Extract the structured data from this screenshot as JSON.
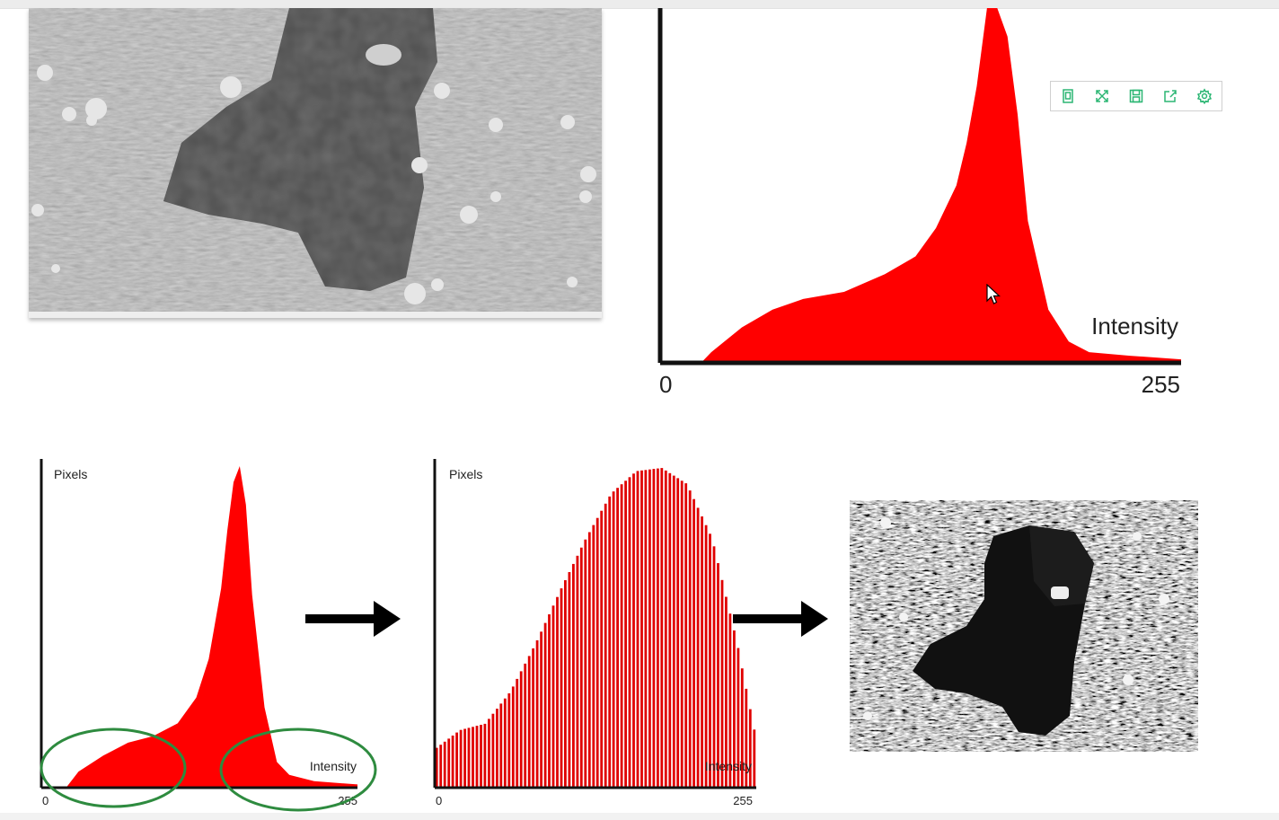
{
  "toolbox": {
    "icons": [
      "data-zoom-icon",
      "restore-icon",
      "save-image-icon",
      "share-icon",
      "settings-icon"
    ],
    "color": "#2bb673"
  },
  "colors": {
    "histogram": "#ff0000",
    "axis": "#111111",
    "circle": "#2e8b3f"
  },
  "chart_data": [
    {
      "type": "area",
      "xlabel": "Intensity",
      "ylabel": "",
      "x_tick_labels": [
        "0",
        "255"
      ],
      "xlim": [
        0,
        255
      ],
      "x": [
        0,
        20,
        25,
        40,
        55,
        70,
        90,
        110,
        125,
        135,
        145,
        150,
        155,
        160,
        165,
        170,
        175,
        180,
        190,
        200,
        210,
        230,
        255
      ],
      "y": [
        0,
        0,
        3,
        10,
        15,
        18,
        20,
        25,
        30,
        38,
        50,
        62,
        78,
        100,
        100,
        92,
        70,
        40,
        15,
        6,
        3,
        2,
        1
      ]
    },
    {
      "type": "area",
      "ylabel": "Pixels",
      "xlabel": "Intensity",
      "x_tick_labels": [
        "0",
        "255"
      ],
      "xlim": [
        0,
        255
      ],
      "x": [
        0,
        20,
        30,
        50,
        70,
        90,
        110,
        125,
        135,
        145,
        150,
        155,
        160,
        165,
        170,
        180,
        190,
        200,
        220,
        255
      ],
      "y": [
        0,
        0,
        5,
        10,
        14,
        16,
        20,
        28,
        40,
        62,
        80,
        95,
        100,
        88,
        60,
        25,
        8,
        4,
        2,
        1
      ]
    },
    {
      "type": "bar",
      "ylabel": "Pixels",
      "xlabel": "Intensity",
      "x_tick_labels": [
        "0",
        "255"
      ],
      "xlim": [
        0,
        255
      ],
      "x": [
        0,
        20,
        40,
        60,
        80,
        100,
        120,
        140,
        160,
        180,
        200,
        220,
        240,
        255
      ],
      "y": [
        12,
        18,
        20,
        30,
        45,
        62,
        78,
        92,
        99,
        100,
        95,
        78,
        45,
        15
      ]
    }
  ]
}
